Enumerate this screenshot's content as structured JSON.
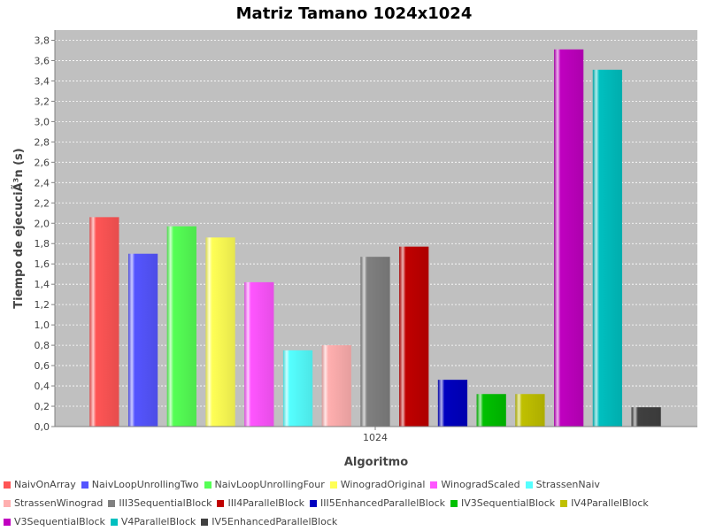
{
  "chart_data": {
    "type": "bar",
    "title": "Matriz Tamano 1024x1024",
    "xlabel": "Algoritmo",
    "ylabel": "Tiempo de ejecuciÃ³n (s)",
    "categories": [
      "1024"
    ],
    "ylim": [
      0,
      3.9
    ],
    "yticks": [
      "0,0",
      "0,2",
      "0,4",
      "0,6",
      "0,8",
      "1,0",
      "1,2",
      "1,4",
      "1,6",
      "1,8",
      "2,0",
      "2,2",
      "2,4",
      "2,6",
      "2,8",
      "3,0",
      "3,2",
      "3,4",
      "3,6",
      "3,8"
    ],
    "grid": true,
    "legend_position": "bottom",
    "series": [
      {
        "name": "NaivOnArray",
        "values": [
          2.06
        ],
        "color": "#ff5555"
      },
      {
        "name": "NaivLoopUnrollingTwo",
        "values": [
          1.7
        ],
        "color": "#5555ff"
      },
      {
        "name": "NaivLoopUnrollingFour",
        "values": [
          1.97
        ],
        "color": "#55ff55"
      },
      {
        "name": "WinogradOriginal",
        "values": [
          1.86
        ],
        "color": "#ffff55"
      },
      {
        "name": "WinogradScaled",
        "values": [
          1.42
        ],
        "color": "#ff55ff"
      },
      {
        "name": "StrassenNaiv",
        "values": [
          0.75
        ],
        "color": "#55ffff"
      },
      {
        "name": "StrassenWinograd",
        "values": [
          0.8
        ],
        "color": "#ffafaf"
      },
      {
        "name": "III3SequentialBlock",
        "values": [
          1.67
        ],
        "color": "#808080"
      },
      {
        "name": "III4ParallelBlock",
        "values": [
          1.77
        ],
        "color": "#c00000"
      },
      {
        "name": "III5EnhancedParallelBlock",
        "values": [
          0.46
        ],
        "color": "#0000c0"
      },
      {
        "name": "IV3SequentialBlock",
        "values": [
          0.32
        ],
        "color": "#00c000"
      },
      {
        "name": "IV4ParallelBlock",
        "values": [
          0.32
        ],
        "color": "#c0c000"
      },
      {
        "name": "V3SequentialBlock",
        "values": [
          3.71
        ],
        "color": "#c000c0"
      },
      {
        "name": "V4ParallelBlock",
        "values": [
          3.51
        ],
        "color": "#00c0c0"
      },
      {
        "name": "IV5EnhancedParallelBlock",
        "values": [
          0.19
        ],
        "color": "#404040"
      }
    ]
  }
}
